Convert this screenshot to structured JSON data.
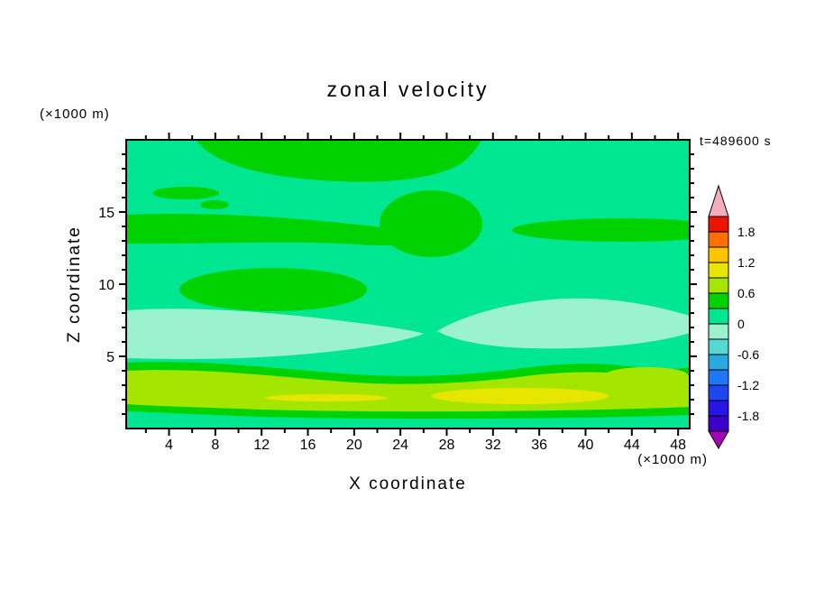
{
  "chart": {
    "title": "zonal  velocity",
    "time_label": "t=489600 s",
    "xlabel": "X coordinate",
    "ylabel": "Z coordinate",
    "x_unit": "(×1000 m)",
    "y_unit": "(×1000 m)",
    "x_ticks": [
      4,
      8,
      12,
      16,
      20,
      24,
      28,
      32,
      36,
      40,
      44,
      48
    ],
    "x_minor_ticks": [
      2,
      6,
      10,
      14,
      18,
      22,
      26,
      30,
      34,
      38,
      42,
      46
    ],
    "y_ticks": [
      5,
      10,
      15
    ],
    "y_minor_ticks": [
      1,
      2,
      3,
      4,
      6,
      7,
      8,
      9,
      11,
      12,
      13,
      14,
      16,
      17,
      18,
      19
    ],
    "x_range": [
      0.3,
      49.0
    ],
    "z_range": [
      0,
      20
    ],
    "colorbar": {
      "tick_labels": [
        "1.8",
        "1.2",
        "0.6",
        "0",
        "-0.6",
        "-1.2",
        "-1.8"
      ],
      "tick_values": [
        1.8,
        1.2,
        0.6,
        0,
        -0.6,
        -1.2,
        -1.8
      ],
      "max": 2.1,
      "interval": 0.3,
      "arrow_low_color": "#A800B4",
      "arrow_high_color": "#F2AEBE",
      "segments": [
        {
          "from": -2.1,
          "to": -1.8,
          "color": "#3C00C8"
        },
        {
          "from": -1.8,
          "to": -1.5,
          "color": "#2814E6"
        },
        {
          "from": -1.5,
          "to": -1.2,
          "color": "#1E46F0"
        },
        {
          "from": -1.2,
          "to": -0.9,
          "color": "#1E78F5"
        },
        {
          "from": -0.9,
          "to": -0.6,
          "color": "#28AAE1"
        },
        {
          "from": -0.6,
          "to": -0.3,
          "color": "#55D7D2"
        },
        {
          "from": -0.3,
          "to": 0.0,
          "color": "#9BF2CE"
        },
        {
          "from": 0.0,
          "to": 0.3,
          "color": "#00E691"
        },
        {
          "from": 0.3,
          "to": 0.6,
          "color": "#00D200"
        },
        {
          "from": 0.6,
          "to": 0.9,
          "color": "#A5E600"
        },
        {
          "from": 0.9,
          "to": 1.2,
          "color": "#E6E600"
        },
        {
          "from": 1.2,
          "to": 1.5,
          "color": "#FFC300"
        },
        {
          "from": 1.5,
          "to": 1.8,
          "color": "#FF6E00"
        },
        {
          "from": 1.8,
          "to": 2.1,
          "color": "#EB1400"
        }
      ]
    }
  },
  "chart_data": {
    "type": "heatmap",
    "title": "zonal velocity",
    "time": "t=489600 s",
    "xlabel": "X coordinate (×1000 m)",
    "ylabel": "Z coordinate (×1000 m)",
    "x": [
      1,
      5,
      9,
      13,
      17,
      21,
      25,
      29,
      33,
      37,
      41,
      45,
      49
    ],
    "z_top_to_bottom": [
      19,
      16,
      13,
      10,
      7,
      4,
      2,
      0.5
    ],
    "values_rows_top_to_bottom": [
      [
        0.1,
        0.4,
        0.4,
        0.4,
        0.4,
        0.4,
        0.4,
        0.4,
        0.1,
        0.1,
        0.1,
        0.1,
        0.1
      ],
      [
        0.1,
        0.1,
        0.1,
        0.1,
        0.1,
        0.1,
        0.4,
        0.4,
        0.1,
        0.1,
        0.1,
        0.1,
        0.1
      ],
      [
        0.4,
        0.4,
        0.4,
        0.4,
        0.4,
        0.4,
        0.4,
        0.4,
        0.2,
        0.4,
        0.4,
        0.4,
        0.4
      ],
      [
        0.1,
        0.4,
        0.4,
        0.4,
        0.4,
        0.2,
        0.1,
        0.1,
        0.1,
        0.1,
        0.1,
        0.1,
        0.1
      ],
      [
        -0.1,
        -0.1,
        -0.1,
        -0.1,
        -0.1,
        -0.1,
        0.1,
        -0.2,
        -0.2,
        -0.2,
        -0.2,
        -0.2,
        -0.1
      ],
      [
        0.1,
        0.1,
        0.1,
        0.1,
        0.1,
        0.1,
        0.1,
        0.1,
        0.1,
        0.1,
        0.1,
        0.1,
        0.1
      ],
      [
        0.7,
        0.7,
        0.7,
        0.7,
        0.8,
        0.8,
        0.8,
        0.8,
        1.0,
        1.0,
        0.8,
        0.7,
        0.7
      ],
      [
        0.2,
        0.2,
        0.2,
        0.2,
        0.2,
        0.2,
        0.2,
        0.2,
        0.2,
        0.2,
        0.2,
        0.2,
        0.2
      ]
    ],
    "contour_interval": 0.3,
    "colorbar_range": [
      -2.1,
      2.1
    ],
    "colorbar_labels": [
      1.8,
      1.2,
      0.6,
      0,
      -0.6,
      -1.2,
      -1.8
    ]
  }
}
